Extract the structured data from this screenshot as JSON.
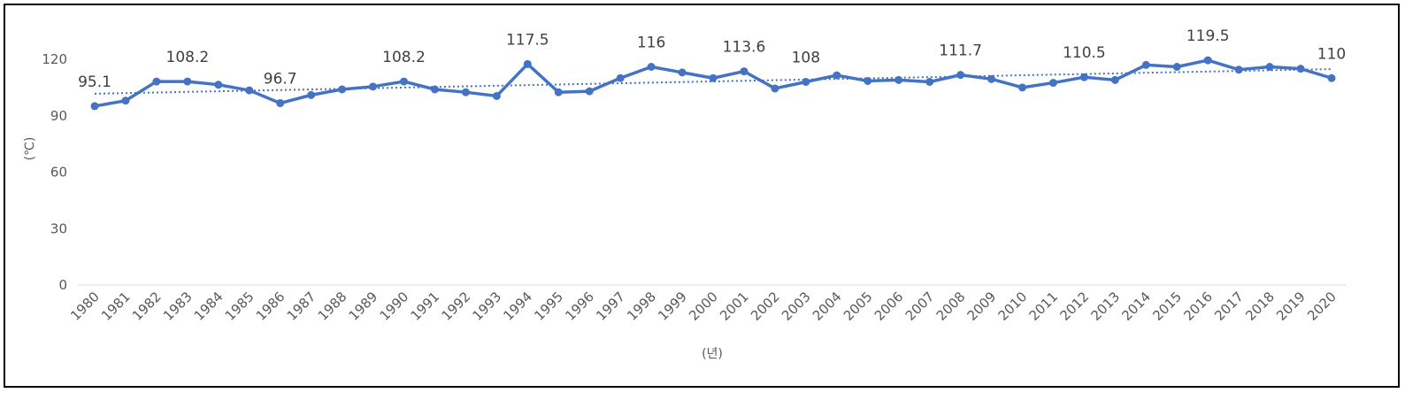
{
  "chart_data": {
    "type": "line",
    "xlabel": "(년)",
    "ylabel": "(℃)",
    "ylim": [
      0,
      120
    ],
    "yticks": [
      "0",
      "30",
      "60",
      "90",
      "120"
    ],
    "grid": false,
    "legend": "none",
    "x": [
      "1980",
      "1981",
      "1982",
      "1983",
      "1984",
      "1985",
      "1986",
      "1987",
      "1988",
      "1989",
      "1990",
      "1991",
      "1992",
      "1993",
      "1994",
      "1995",
      "1996",
      "1997",
      "1998",
      "1999",
      "2000",
      "2001",
      "2002",
      "2003",
      "2004",
      "2005",
      "2006",
      "2007",
      "2008",
      "2009",
      "2010",
      "2011",
      "2012",
      "2013",
      "2014",
      "2015",
      "2016",
      "2017",
      "2018",
      "2019",
      "2020"
    ],
    "series": [
      {
        "values": [
          95.1,
          98.0,
          108.2,
          108.2,
          106.5,
          103.5,
          96.7,
          101.0,
          104.0,
          105.5,
          108.2,
          104.0,
          102.5,
          100.5,
          117.5,
          102.5,
          103.0,
          110.0,
          116.0,
          113.0,
          110.0,
          113.6,
          104.5,
          108.0,
          111.5,
          108.5,
          109.0,
          108.0,
          111.7,
          109.5,
          105.0,
          107.5,
          110.5,
          109.0,
          117.0,
          116.0,
          119.5,
          114.5,
          116.0,
          115.0,
          110.0
        ],
        "color": "#4472C4"
      }
    ],
    "trendline": {
      "style": "dotted",
      "color": "#4472C4"
    },
    "data_labels": [
      {
        "x": "1980",
        "text": "95.1"
      },
      {
        "x": "1983",
        "text": "108.2"
      },
      {
        "x": "1986",
        "text": "96.7"
      },
      {
        "x": "1990",
        "text": "108.2"
      },
      {
        "x": "1994",
        "text": "117.5"
      },
      {
        "x": "1998",
        "text": "116"
      },
      {
        "x": "2001",
        "text": "113.6"
      },
      {
        "x": "2003",
        "text": "108"
      },
      {
        "x": "2008",
        "text": "111.7"
      },
      {
        "x": "2012",
        "text": "110.5"
      },
      {
        "x": "2016",
        "text": "119.5"
      },
      {
        "x": "2020",
        "text": "110"
      }
    ]
  }
}
